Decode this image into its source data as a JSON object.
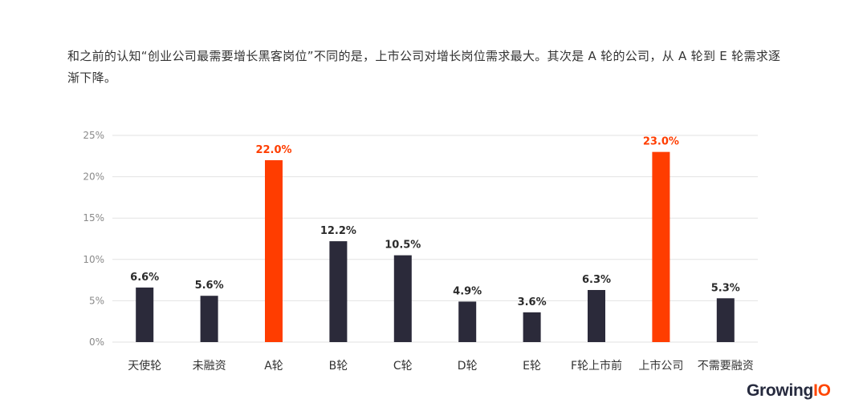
{
  "description": "和之前的认知“创业公司最需要增长黑客岗位”不同的是，上市公司对增长岗位需求最大。其次是 A 轮的公司，从 A 轮到 E 轮需求逐渐下降。",
  "logo": {
    "main": "Growing",
    "accent": "IO"
  },
  "colors": {
    "bar": "#2b2a3a",
    "highlight": "#ff3d00",
    "grid": "#e2e2e2",
    "axis_text": "#8a8a8a"
  },
  "chart_data": {
    "type": "bar",
    "categories": [
      "天使轮",
      "未融资",
      "A轮",
      "B轮",
      "C轮",
      "D轮",
      "E轮",
      "F轮上市前",
      "上市公司",
      "不需要融资"
    ],
    "values": [
      6.6,
      5.6,
      22.0,
      12.2,
      10.5,
      4.9,
      3.6,
      6.3,
      23.0,
      5.3
    ],
    "value_labels": [
      "6.6%",
      "5.6%",
      "22.0%",
      "12.2%",
      "10.5%",
      "4.9%",
      "3.6%",
      "6.3%",
      "23.0%",
      "5.3%"
    ],
    "highlight_indices": [
      2,
      8
    ],
    "ylim": [
      0,
      25
    ],
    "yticks": [
      "0%",
      "5%",
      "10%",
      "15%",
      "20%",
      "25%"
    ],
    "ytick_values": [
      0,
      5,
      10,
      15,
      20,
      25
    ],
    "grid": true,
    "legend": false
  }
}
